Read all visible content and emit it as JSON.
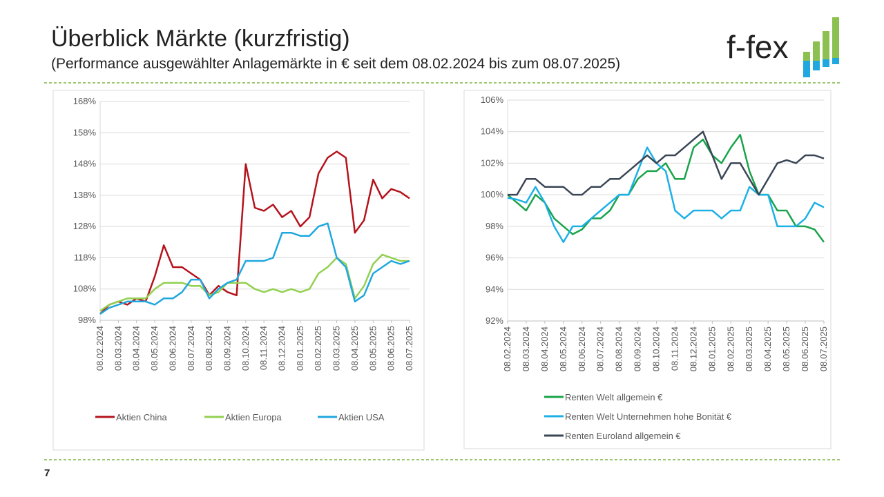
{
  "header": {
    "title": "Überblick Märkte (kurzfristig)",
    "subtitle": "(Performance ausgewählter Anlagemärkte in € seit dem 08.02.2024 bis zum 08.07.2025)"
  },
  "logo": "f-fex",
  "page_number": "7",
  "chart_data": [
    {
      "type": "line",
      "categories": [
        "08.02.2024",
        null,
        "08.03.2024",
        null,
        "08.04.2024",
        null,
        "08.05.2024",
        null,
        "08.06.2024",
        null,
        "08.07.2024",
        null,
        "08.08.2024",
        null,
        "08.09.2024",
        null,
        "08.10.2024",
        null,
        "08.11.2024",
        null,
        "08.12.2024",
        null,
        "08.01.2025",
        null,
        "08.02.2025",
        null,
        "08.03.2025",
        null,
        "08.04.2025",
        null,
        "08.05.2025",
        null,
        "08.06.2025",
        null,
        "08.07.2025"
      ],
      "ylim": [
        98,
        168
      ],
      "yticks": [
        {
          "value": 98,
          "label": "98%"
        },
        {
          "value": 108,
          "label": "108%"
        },
        {
          "value": 118,
          "label": "118%"
        },
        {
          "value": 128,
          "label": "128%"
        },
        {
          "value": 138,
          "label": "138%"
        },
        {
          "value": 148,
          "label": "148%"
        },
        {
          "value": 158,
          "label": "158%"
        },
        {
          "value": 168,
          "label": "168%"
        }
      ],
      "grid": true,
      "legend": "bottom",
      "series": [
        {
          "name": "Aktien China",
          "color": "#b5121b",
          "values": [
            100,
            103,
            104,
            103,
            105,
            104,
            112,
            122,
            115,
            115,
            113,
            111,
            106,
            109,
            107,
            106,
            148,
            134,
            133,
            135,
            131,
            133,
            128,
            131,
            145,
            150,
            152,
            150,
            126,
            130,
            143,
            137,
            140,
            139,
            137
          ]
        },
        {
          "name": "Aktien Europa",
          "color": "#92d050",
          "values": [
            101,
            103,
            104,
            105,
            105,
            105,
            108,
            110,
            110,
            110,
            109,
            109,
            106,
            107,
            110,
            110,
            110,
            108,
            107,
            108,
            107,
            108,
            107,
            108,
            113,
            115,
            118,
            116,
            105,
            109,
            116,
            119,
            118,
            117,
            117
          ]
        },
        {
          "name": "Aktien USA",
          "color": "#1fa7df",
          "values": [
            100,
            102,
            103,
            104,
            104,
            104,
            103,
            105,
            105,
            107,
            111,
            111,
            105,
            108,
            110,
            111,
            117,
            117,
            117,
            118,
            126,
            126,
            125,
            125,
            128,
            129,
            118,
            115,
            104,
            106,
            113,
            115,
            117,
            116,
            117
          ]
        }
      ]
    },
    {
      "type": "line",
      "categories": [
        "08.02.2024",
        null,
        "08.03.2024",
        null,
        "08.04.2024",
        null,
        "08.05.2024",
        null,
        "08.06.2024",
        null,
        "08.07.2024",
        null,
        "08.08.2024",
        null,
        "08.09.2024",
        null,
        "08.10.2024",
        null,
        "08.11.2024",
        null,
        "08.12.2024",
        null,
        "08.01.2025",
        null,
        "08.02.2025",
        null,
        "08.03.2025",
        null,
        "08.04.2025",
        null,
        "08.05.2025",
        null,
        "08.06.2025",
        null,
        "08.07.2025"
      ],
      "ylim": [
        92,
        106
      ],
      "yticks": [
        {
          "value": 92,
          "label": "92%"
        },
        {
          "value": 94,
          "label": "94%"
        },
        {
          "value": 96,
          "label": "96%"
        },
        {
          "value": 98,
          "label": "98%"
        },
        {
          "value": 100,
          "label": "100%"
        },
        {
          "value": 102,
          "label": "102%"
        },
        {
          "value": 104,
          "label": "104%"
        },
        {
          "value": 106,
          "label": "106%"
        }
      ],
      "grid": true,
      "legend": "bottom-list",
      "series": [
        {
          "name": "Renten Welt allgemein €",
          "color": "#1aa34a",
          "values": [
            100,
            99.5,
            99,
            100,
            99.5,
            98.5,
            98,
            97.5,
            97.8,
            98.5,
            98.5,
            99,
            100,
            100,
            101,
            101.5,
            101.5,
            102,
            101,
            101,
            103,
            103.5,
            102.5,
            102,
            103,
            103.8,
            101.5,
            100,
            100,
            99,
            99,
            98,
            98,
            97.8,
            97
          ]
        },
        {
          "name": "Renten Welt Unternehmen hohe Bonität €",
          "color": "#1cb0e6",
          "values": [
            99.8,
            99.7,
            99.5,
            100.5,
            99.5,
            98,
            97,
            98,
            98,
            98.5,
            99,
            99.5,
            100,
            100,
            101.5,
            103,
            102,
            101.5,
            99,
            98.5,
            99,
            99,
            99,
            98.5,
            99,
            99,
            100.5,
            100,
            100,
            98,
            98,
            98,
            98.5,
            99.5,
            99.2
          ]
        },
        {
          "name": "Renten Euroland allgemein €",
          "color": "#3a4656",
          "values": [
            100,
            100,
            101,
            101,
            100.5,
            100.5,
            100.5,
            100,
            100,
            100.5,
            100.5,
            101,
            101,
            101.5,
            102,
            102.5,
            102,
            102.5,
            102.5,
            103,
            103.5,
            104,
            102.5,
            101,
            102,
            102,
            101,
            100,
            101,
            102,
            102.2,
            102,
            102.5,
            102.5,
            102.3
          ]
        }
      ]
    }
  ]
}
